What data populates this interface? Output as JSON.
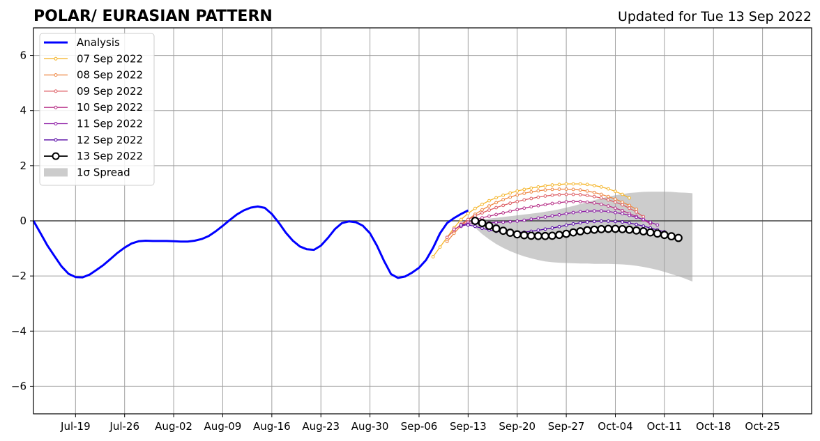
{
  "chart_data": {
    "type": "line",
    "title": "POLAR/ EURASIAN  PATTERN",
    "subtitle": "Updated for Tue 13 Sep 2022",
    "xlabel": "",
    "ylabel": "",
    "x_range": [
      "2022-07-13",
      "2022-11-01"
    ],
    "ylim": [
      -7,
      7
    ],
    "x_ticks": [
      {
        "date": "2022-07-19",
        "label": "Jul-19"
      },
      {
        "date": "2022-07-26",
        "label": "Jul-26"
      },
      {
        "date": "2022-08-02",
        "label": "Aug-02"
      },
      {
        "date": "2022-08-09",
        "label": "Aug-09"
      },
      {
        "date": "2022-08-16",
        "label": "Aug-16"
      },
      {
        "date": "2022-08-23",
        "label": "Aug-23"
      },
      {
        "date": "2022-08-30",
        "label": "Aug-30"
      },
      {
        "date": "2022-09-06",
        "label": "Sep-06"
      },
      {
        "date": "2022-09-13",
        "label": "Sep-13"
      },
      {
        "date": "2022-09-20",
        "label": "Sep-20"
      },
      {
        "date": "2022-09-27",
        "label": "Sep-27"
      },
      {
        "date": "2022-10-04",
        "label": "Oct-04"
      },
      {
        "date": "2022-10-11",
        "label": "Oct-11"
      },
      {
        "date": "2022-10-18",
        "label": "Oct-18"
      },
      {
        "date": "2022-10-25",
        "label": "Oct-25"
      }
    ],
    "y_ticks": [
      {
        "value": -6,
        "label": "−6"
      },
      {
        "value": -4,
        "label": "−4"
      },
      {
        "value": -2,
        "label": "−2"
      },
      {
        "value": 0,
        "label": "0"
      },
      {
        "value": 2,
        "label": "2"
      },
      {
        "value": 4,
        "label": "4"
      },
      {
        "value": 6,
        "label": "6"
      }
    ],
    "grid": true,
    "zero_line": 0,
    "legend": {
      "placement": "top-left",
      "entries": [
        "Analysis",
        "07 Sep 2022",
        "08 Sep 2022",
        "09 Sep 2022",
        "10 Sep 2022",
        "11 Sep 2022",
        "12 Sep 2022",
        "13 Sep 2022",
        "1σ Spread"
      ]
    },
    "analysis": {
      "name": "Analysis",
      "color": "#0000ff",
      "start_date": "2022-07-13",
      "values": [
        0.0,
        -0.45,
        -0.9,
        -1.28,
        -1.65,
        -1.92,
        -2.04,
        -2.05,
        -1.95,
        -1.78,
        -1.6,
        -1.38,
        -1.16,
        -0.97,
        -0.82,
        -0.74,
        -0.72,
        -0.73,
        -0.73,
        -0.73,
        -0.74,
        -0.75,
        -0.75,
        -0.72,
        -0.66,
        -0.55,
        -0.38,
        -0.18,
        0.03,
        0.23,
        0.38,
        0.48,
        0.52,
        0.47,
        0.25,
        -0.07,
        -0.43,
        -0.72,
        -0.93,
        -1.03,
        -1.05,
        -0.9,
        -0.62,
        -0.3,
        -0.08,
        -0.02,
        -0.05,
        -0.18,
        -0.45,
        -0.9,
        -1.45,
        -1.93,
        -2.07,
        -2.02,
        -1.88,
        -1.7,
        -1.42,
        -0.98,
        -0.45,
        -0.08,
        0.1,
        0.25,
        0.38
      ]
    },
    "forecasts": [
      {
        "name": "07 Sep 2022",
        "color": "#f5b52a",
        "start_date": "2022-09-08",
        "values": [
          -1.3,
          -0.95,
          -0.6,
          -0.25,
          0.05,
          0.27,
          0.45,
          0.6,
          0.73,
          0.84,
          0.93,
          1.01,
          1.08,
          1.14,
          1.19,
          1.23,
          1.27,
          1.3,
          1.32,
          1.34,
          1.34,
          1.34,
          1.32,
          1.28,
          1.23,
          1.16,
          1.07,
          0.96,
          0.83
        ]
      },
      {
        "name": "08 Sep 2022",
        "color": "#ee8743",
        "start_date": "2022-09-10",
        "values": [
          -0.75,
          -0.45,
          -0.18,
          0.05,
          0.24,
          0.4,
          0.54,
          0.66,
          0.77,
          0.86,
          0.94,
          1.0,
          1.05,
          1.09,
          1.12,
          1.14,
          1.15,
          1.15,
          1.14,
          1.12,
          1.08,
          1.03,
          0.96,
          0.88,
          0.79,
          0.68,
          0.56,
          0.42
        ]
      },
      {
        "name": "09 Sep 2022",
        "color": "#dd5d63",
        "start_date": "2022-09-10",
        "values": [
          -0.6,
          -0.35,
          -0.12,
          0.05,
          0.18,
          0.29,
          0.39,
          0.48,
          0.56,
          0.64,
          0.7,
          0.76,
          0.81,
          0.86,
          0.9,
          0.93,
          0.95,
          0.96,
          0.96,
          0.95,
          0.92,
          0.88,
          0.83,
          0.76,
          0.68,
          0.58,
          0.46,
          0.32,
          0.15
        ]
      },
      {
        "name": "10 Sep 2022",
        "color": "#b83289",
        "start_date": "2022-09-11",
        "values": [
          -0.3,
          -0.18,
          -0.05,
          0.04,
          0.11,
          0.17,
          0.23,
          0.29,
          0.35,
          0.41,
          0.46,
          0.51,
          0.55,
          0.59,
          0.63,
          0.66,
          0.69,
          0.7,
          0.7,
          0.68,
          0.65,
          0.6,
          0.54,
          0.46,
          0.37,
          0.27,
          0.16,
          0.03,
          -0.1
        ]
      },
      {
        "name": "11 Sep 2022",
        "color": "#8c1aa5",
        "start_date": "2022-09-12",
        "values": [
          -0.2,
          -0.12,
          -0.1,
          -0.08,
          -0.07,
          -0.06,
          -0.05,
          -0.03,
          -0.01,
          0.02,
          0.06,
          0.1,
          0.14,
          0.18,
          0.22,
          0.26,
          0.3,
          0.33,
          0.35,
          0.36,
          0.36,
          0.34,
          0.3,
          0.26,
          0.2,
          0.13,
          0.05,
          -0.05,
          -0.15
        ]
      },
      {
        "name": "12 Sep 2022",
        "color": "#5302a3",
        "start_date": "2022-09-12",
        "values": [
          -0.15,
          -0.15,
          -0.2,
          -0.27,
          -0.33,
          -0.38,
          -0.41,
          -0.42,
          -0.42,
          -0.41,
          -0.38,
          -0.34,
          -0.3,
          -0.26,
          -0.21,
          -0.16,
          -0.11,
          -0.07,
          -0.04,
          -0.02,
          -0.01,
          -0.01,
          -0.02,
          -0.04,
          -0.08,
          -0.13,
          -0.19,
          -0.26,
          -0.33,
          -0.4
        ]
      },
      {
        "name": "13 Sep 2022",
        "color": "#000000",
        "start_date": "2022-09-14",
        "values": [
          0.0,
          -0.08,
          -0.18,
          -0.28,
          -0.36,
          -0.43,
          -0.49,
          -0.52,
          -0.54,
          -0.55,
          -0.55,
          -0.54,
          -0.51,
          -0.47,
          -0.42,
          -0.38,
          -0.34,
          -0.32,
          -0.3,
          -0.29,
          -0.29,
          -0.3,
          -0.32,
          -0.35,
          -0.38,
          -0.42,
          -0.46,
          -0.51,
          -0.56,
          -0.62
        ]
      }
    ],
    "spread": {
      "name": "1σ Spread",
      "color": "#cccccc",
      "start_date": "2022-09-13",
      "upper": [
        0.0,
        0.02,
        0.05,
        0.08,
        0.11,
        0.14,
        0.17,
        0.2,
        0.23,
        0.26,
        0.29,
        0.33,
        0.37,
        0.42,
        0.48,
        0.54,
        0.61,
        0.68,
        0.75,
        0.82,
        0.88,
        0.93,
        0.97,
        1.01,
        1.03,
        1.05,
        1.06,
        1.06,
        1.06,
        1.05,
        1.03,
        1.02,
        1.0
      ],
      "lower": [
        0.0,
        -0.25,
        -0.48,
        -0.67,
        -0.84,
        -0.98,
        -1.1,
        -1.2,
        -1.29,
        -1.36,
        -1.42,
        -1.47,
        -1.5,
        -1.52,
        -1.53,
        -1.54,
        -1.55,
        -1.55,
        -1.56,
        -1.56,
        -1.56,
        -1.57,
        -1.58,
        -1.6,
        -1.63,
        -1.67,
        -1.72,
        -1.78,
        -1.85,
        -1.93,
        -2.01,
        -2.1,
        -2.2
      ]
    }
  }
}
